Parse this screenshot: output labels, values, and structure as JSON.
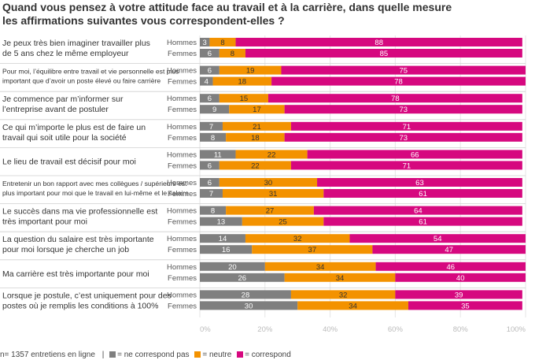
{
  "chart_data": {
    "type": "bar",
    "stacked": true,
    "orientation": "horizontal",
    "title": "Quand vous pensez à votre attitude face au travail et à la carrière, dans quelle mesure les affirmations suivantes vous correspondent-elles ?",
    "title_lines": [
      "Quand vous pensez à votre attitude face au travail et à la carrière, dans quelle mesure",
      "les affirmations suivantes vous correspondent-elles ?"
    ],
    "groups": [
      "Hommes",
      "Femmes"
    ],
    "series": [
      {
        "name": "ne correspond pas",
        "color": "#7f7f7f"
      },
      {
        "name": "neutre",
        "color": "#f39200"
      },
      {
        "name": "correspond",
        "color": "#d6087f"
      }
    ],
    "xlim": [
      0,
      100
    ],
    "x_ticks": [
      "0%",
      "20%",
      "40%",
      "60%",
      "80%",
      "100%"
    ],
    "grid": true,
    "legend": "bottom-left",
    "categories": [
      {
        "label_lines": [
          "Je peux très bien imaginer travailler plus",
          "de 5 ans chez le même employeur"
        ],
        "small": false,
        "hommes": [
          3,
          8,
          88
        ],
        "femmes": [
          6,
          8,
          85
        ]
      },
      {
        "label_lines": [
          "Pour moi, l’équilibre entre travail et vie personnelle est plus",
          "important que d’avoir un poste élevé ou faire carrière"
        ],
        "small": true,
        "hommes": [
          6,
          19,
          75
        ],
        "femmes": [
          4,
          18,
          78
        ]
      },
      {
        "label_lines": [
          "Je commence par m’informer sur",
          "l’entreprise avant de postuler"
        ],
        "small": false,
        "hommes": [
          6,
          15,
          78
        ],
        "femmes": [
          9,
          17,
          73
        ]
      },
      {
        "label_lines": [
          "Ce qui m’importe le plus est de faire un",
          "travail qui soit utile pour la société"
        ],
        "small": false,
        "hommes": [
          7,
          21,
          71
        ],
        "femmes": [
          8,
          18,
          73
        ]
      },
      {
        "label_lines": [
          "Le lieu de travail est décisif pour moi"
        ],
        "small": false,
        "hommes": [
          11,
          22,
          66
        ],
        "femmes": [
          6,
          22,
          71
        ]
      },
      {
        "label_lines": [
          "Entretenir un bon rapport avec mes collègues / supérieurs est",
          "plus important pour moi que le travail en lui-même et le salaire"
        ],
        "small": true,
        "hommes": [
          6,
          30,
          63
        ],
        "femmes": [
          7,
          31,
          61
        ]
      },
      {
        "label_lines": [
          "Le succès dans ma vie professionnelle est",
          "très important pour moi"
        ],
        "small": false,
        "hommes": [
          8,
          27,
          64
        ],
        "femmes": [
          13,
          25,
          61
        ]
      },
      {
        "label_lines": [
          "La question du salaire est très importante",
          "pour moi lorsque je cherche un job"
        ],
        "small": false,
        "hommes": [
          14,
          32,
          54
        ],
        "femmes": [
          16,
          37,
          47
        ]
      },
      {
        "label_lines": [
          "Ma carrière est très importante pour moi"
        ],
        "small": false,
        "hommes": [
          20,
          34,
          46
        ],
        "femmes": [
          26,
          34,
          40
        ]
      },
      {
        "label_lines": [
          "Lorsque je postule, c’est uniquement pour des",
          "postes où je remplis les conditions à 100%"
        ],
        "small": false,
        "hommes": [
          28,
          32,
          39
        ],
        "femmes": [
          30,
          34,
          35
        ]
      }
    ]
  },
  "footer": {
    "note": "n= 1357 entretiens en ligne",
    "separator": "|",
    "legend": [
      {
        "label": "= ne correspond pas",
        "color": "#7f7f7f"
      },
      {
        "label": "= neutre",
        "color": "#f39200"
      },
      {
        "label": "= correspond",
        "color": "#d6087f"
      }
    ]
  }
}
